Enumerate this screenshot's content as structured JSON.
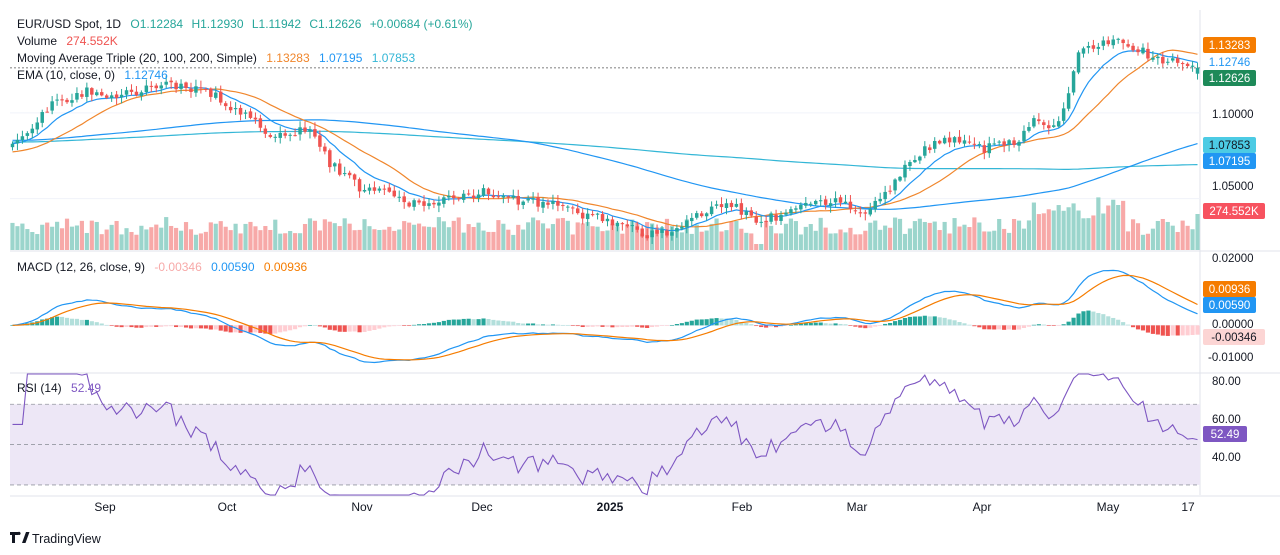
{
  "colors": {
    "up": "#26a69a",
    "down": "#ef5350",
    "vol_up": "#9bd5cc",
    "vol_down": "#f7a9a8",
    "ma20": "#f0862c",
    "ma100": "#2196f3",
    "ma200": "#33b6d6",
    "ema10": "#2196f3",
    "macd_line": "#2196f3",
    "signal_line": "#f57c00",
    "rsi_line": "#7e57c2",
    "rsi_band": "#ede7f6",
    "text": "#131722",
    "grid": "#f0f3fa",
    "border": "#e0e3eb"
  },
  "legend": {
    "symbol": "EUR/USD Spot, 1D",
    "open": "O1.12284",
    "high": "H1.12930",
    "low": "L1.11942",
    "close": "C1.12626",
    "change": "+0.00684 (+0.61%)",
    "volume_label": "Volume",
    "volume_value": "274.552K",
    "ma_label": "Moving Average Triple (20, 100, 200, Simple)",
    "ma_v1": "1.13283",
    "ma_v2": "1.07195",
    "ma_v3": "1.07853",
    "ema_label": "EMA (10, close, 0)",
    "ema_value": "1.12746",
    "macd_label": "MACD (12, 26, close, 9)",
    "macd_hist": "-0.00346",
    "macd_line": "0.00590",
    "macd_signal": "0.00936",
    "rsi_label": "RSI (14)",
    "rsi_value": "52.49"
  },
  "price_axis": [
    "1.10000",
    "1.05000"
  ],
  "price_tags": {
    "ma20": "1.13283",
    "ema10": "1.12746",
    "close": "1.12626",
    "ma200": "1.07853",
    "ma100": "1.07195",
    "volume": "274.552K"
  },
  "macd_axis": [
    "0.02000",
    "0.00000",
    "-0.01000"
  ],
  "macd_tags": {
    "signal": "0.00936",
    "macd": "0.00590",
    "hist": "-0.00346"
  },
  "rsi_axis": [
    "80.00",
    "60.00",
    "40.00"
  ],
  "rsi_tag": "52.49",
  "time_axis": [
    "Sep",
    "Oct",
    "Nov",
    "Dec",
    "2025",
    "Feb",
    "Mar",
    "Apr",
    "May",
    "17"
  ],
  "branding": "TradingView",
  "chart_data": {
    "type": "candlestick",
    "title": "EUR/USD Spot, 1D",
    "ylim": [
      1.02,
      1.16
    ],
    "anchors": [
      [
        0,
        1.082
      ],
      [
        8,
        1.105
      ],
      [
        15,
        1.113
      ],
      [
        22,
        1.11
      ],
      [
        30,
        1.117
      ],
      [
        38,
        1.114
      ],
      [
        43,
        1.106
      ],
      [
        52,
        1.088
      ],
      [
        60,
        1.09
      ],
      [
        64,
        1.071
      ],
      [
        70,
        1.056
      ],
      [
        75,
        1.058
      ],
      [
        80,
        1.047
      ],
      [
        90,
        1.05
      ],
      [
        95,
        1.055
      ],
      [
        100,
        1.05
      ],
      [
        108,
        1.047
      ],
      [
        112,
        1.043
      ],
      [
        120,
        1.038
      ],
      [
        126,
        1.032
      ],
      [
        128,
        1.028
      ],
      [
        134,
        1.032
      ],
      [
        140,
        1.043
      ],
      [
        145,
        1.046
      ],
      [
        150,
        1.038
      ],
      [
        156,
        1.04
      ],
      [
        162,
        1.048
      ],
      [
        168,
        1.048
      ],
      [
        172,
        1.04
      ],
      [
        177,
        1.055
      ],
      [
        180,
        1.07
      ],
      [
        186,
        1.082
      ],
      [
        190,
        1.086
      ],
      [
        196,
        1.079
      ],
      [
        200,
        1.082
      ],
      [
        203,
        1.084
      ],
      [
        206,
        1.099
      ],
      [
        209,
        1.089
      ],
      [
        212,
        1.102
      ],
      [
        215,
        1.135
      ],
      [
        219,
        1.138
      ],
      [
        222,
        1.143
      ],
      [
        224,
        1.14
      ],
      [
        228,
        1.136
      ],
      [
        232,
        1.128
      ],
      [
        236,
        1.131
      ],
      [
        239,
        1.126
      ]
    ],
    "ma_series": [
      {
        "name": "MA20",
        "period": 20
      },
      {
        "name": "MA100",
        "period": 100
      },
      {
        "name": "MA200",
        "period": 200
      },
      {
        "name": "EMA10",
        "period": 10
      }
    ],
    "macd": {
      "fast": 12,
      "slow": 26,
      "signal": 9,
      "ylim": [
        -0.014,
        0.022
      ]
    },
    "rsi": {
      "period": 14,
      "ylim": [
        25,
        85
      ],
      "bands": [
        30,
        70
      ]
    },
    "last": {
      "close": 1.12626,
      "ma20": 1.13283,
      "ma100": 1.07195,
      "ma200": 1.07853,
      "ema10": 1.12746,
      "macd": 0.0059,
      "signal": 0.00936,
      "hist": -0.00346,
      "rsi": 52.49
    }
  }
}
